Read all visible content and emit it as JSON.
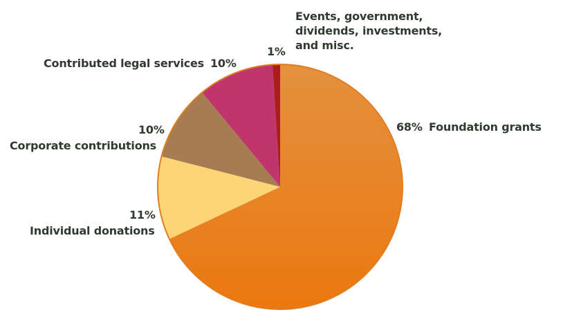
{
  "chart_data": {
    "type": "pie",
    "start": "top",
    "direction": "clockwise",
    "slices": [
      {
        "label": "Foundation grants",
        "value": 68,
        "value_label": "68%",
        "color": "#e68a35"
      },
      {
        "label": "Individual donations",
        "value": 11,
        "value_label": "11%",
        "color": "#fdd574"
      },
      {
        "label": "Corporate contributions",
        "value": 10,
        "value_label": "10%",
        "color": "#a67d53"
      },
      {
        "label": "Contributed legal services",
        "value": 10,
        "value_label": "10%",
        "color": "#bf366d"
      },
      {
        "label": "Events, government, dividends, investments, and misc.",
        "label_lines": [
          "Events, government,",
          "dividends, investments,",
          "and misc."
        ],
        "value": 1,
        "value_label": "1%",
        "color": "#a91d1d"
      }
    ],
    "outline_color": "#e07d22",
    "text_color": "#2f3b30"
  }
}
